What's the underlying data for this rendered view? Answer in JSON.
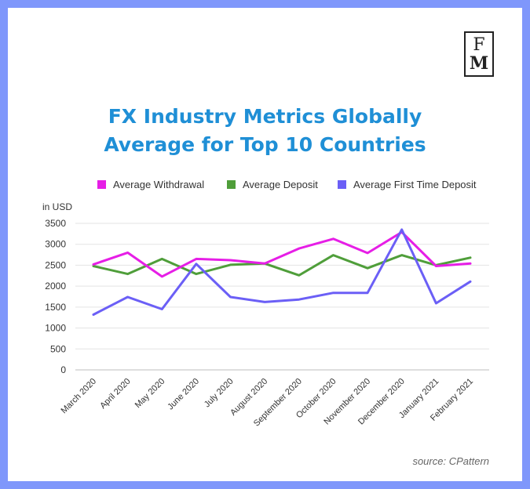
{
  "logo": {
    "line1": "F",
    "line2": "M"
  },
  "title_line1": "FX Industry Metrics Globally",
  "title_line2": "Average for Top 10 Countries",
  "source": "source: CPattern",
  "colors": {
    "background": "#7f97fb",
    "title": "#1f8fd6"
  },
  "chart_data": {
    "type": "line",
    "title": "FX Industry Metrics Globally Average for Top 10 Countries",
    "ylabel": "in USD",
    "xlabel": "",
    "ylim": [
      0,
      3500
    ],
    "yticks": [
      0,
      500,
      1000,
      1500,
      2000,
      2500,
      3000,
      3500
    ],
    "grid": true,
    "legend_position": "top",
    "categories": [
      "March 2020",
      "April 2020",
      "May 2020",
      "June 2020",
      "July 2020",
      "August 2020",
      "September 2020",
      "October 2020",
      "November 2020",
      "December 2020",
      "January 2021",
      "February 2021"
    ],
    "series": [
      {
        "name": "Average Withdrawal",
        "color": "#e61ee6",
        "values": [
          2520,
          2800,
          2230,
          2650,
          2620,
          2540,
          2900,
          3130,
          2790,
          3290,
          2480,
          2540
        ]
      },
      {
        "name": "Average Deposit",
        "color": "#4f9e3a",
        "values": [
          2480,
          2290,
          2650,
          2290,
          2510,
          2540,
          2260,
          2740,
          2430,
          2740,
          2500,
          2680
        ]
      },
      {
        "name": "Average First Time Deposit",
        "color": "#6b5ff6",
        "values": [
          1320,
          1740,
          1450,
          2530,
          1740,
          1620,
          1680,
          1840,
          1840,
          3350,
          1590,
          2110
        ]
      }
    ]
  }
}
